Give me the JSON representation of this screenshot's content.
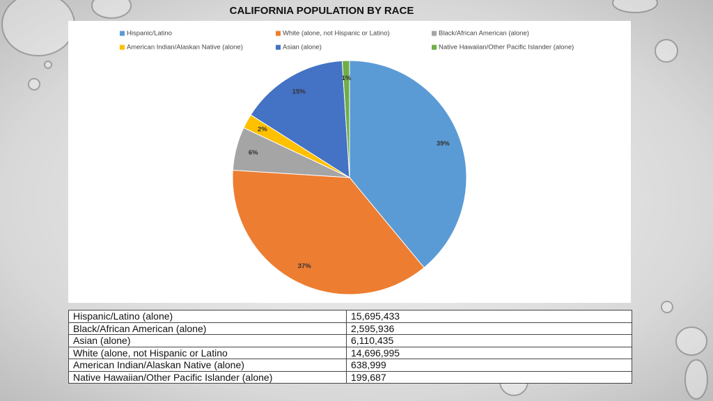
{
  "chart_data": {
    "type": "pie",
    "title": "CALIFORNIA POPULATION BY RACE",
    "categories": [
      "Hispanic/Latino",
      "White (alone, not Hispanic or Latino)",
      "Black/African American (alone)",
      "American Indian/Alaskan Native (alone)",
      "Asian (alone)",
      "Native Hawaiian/Other Pacific Islander (alone)"
    ],
    "values": [
      39,
      37,
      6,
      2,
      15,
      1
    ],
    "value_labels": [
      "39%",
      "37%",
      "6%",
      "2%",
      "15%",
      "1%"
    ],
    "colors": [
      "#5b9bd5",
      "#ed7d31",
      "#a5a5a5",
      "#ffc000",
      "#4472c4",
      "#70ad47"
    ],
    "legend": "top"
  },
  "table": {
    "rows": [
      [
        "Hispanic/Latino (alone)",
        "15,695,433"
      ],
      [
        "Black/African American (alone)",
        "2,595,936"
      ],
      [
        "Asian (alone)",
        "6,110,435"
      ],
      [
        "White (alone, not Hispanic or Latino",
        "14,696,995"
      ],
      [
        "American Indian/Alaskan Native (alone)",
        "638,999"
      ],
      [
        "Native Hawaiian/Other Pacific Islander (alone)",
        "199,687"
      ]
    ]
  }
}
